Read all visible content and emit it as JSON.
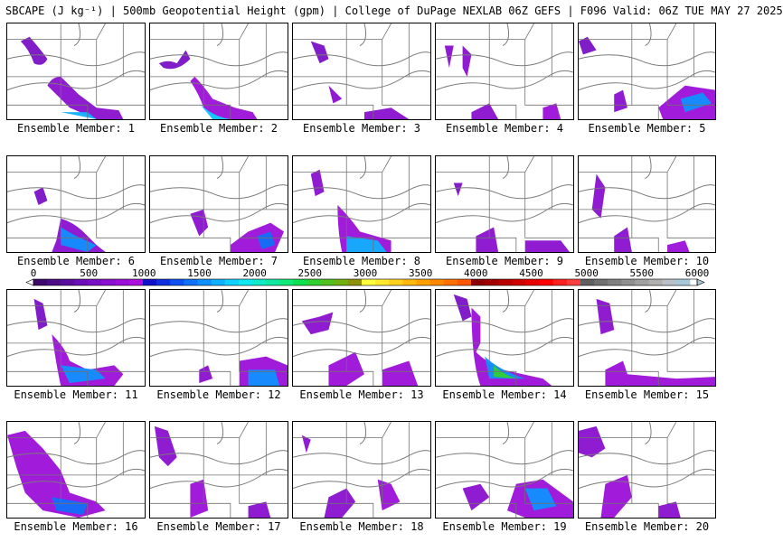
{
  "header": {
    "title": "SBCAPE (J kg⁻¹) | 500mb Geopotential Height (gpm) | College of DuPage NEXLAB 06Z GEFS | F096 Valid: 06Z TUE MAY 27 2025"
  },
  "caption_prefix": "Ensemble Member: ",
  "members": [
    {
      "label": "Ensemble Member: 1"
    },
    {
      "label": "Ensemble Member: 2"
    },
    {
      "label": "Ensemble Member: 3"
    },
    {
      "label": "Ensemble Member: 4"
    },
    {
      "label": "Ensemble Member: 5"
    },
    {
      "label": "Ensemble Member: 6"
    },
    {
      "label": "Ensemble Member: 7"
    },
    {
      "label": "Ensemble Member: 8"
    },
    {
      "label": "Ensemble Member: 9"
    },
    {
      "label": "Ensemble Member: 10"
    },
    {
      "label": "Ensemble Member: 11"
    },
    {
      "label": "Ensemble Member: 12"
    },
    {
      "label": "Ensemble Member: 13"
    },
    {
      "label": "Ensemble Member: 14"
    },
    {
      "label": "Ensemble Member: 15"
    },
    {
      "label": "Ensemble Member: 16"
    },
    {
      "label": "Ensemble Member: 17"
    },
    {
      "label": "Ensemble Member: 18"
    },
    {
      "label": "Ensemble Member: 19"
    },
    {
      "label": "Ensemble Member: 20"
    }
  ],
  "colorbar": {
    "tick_labels": [
      "0",
      "500",
      "1000",
      "1500",
      "2000",
      "2500",
      "3000",
      "3500",
      "4000",
      "4500",
      "5000",
      "5500",
      "6000"
    ],
    "min": 0,
    "max": 6000,
    "step": 125,
    "colors": [
      "#3d0a6b",
      "#4b0c85",
      "#5a0e9e",
      "#690fb5",
      "#7a10c6",
      "#8a10d0",
      "#9b10d8",
      "#ac10dd",
      "#1010c8",
      "#1030e0",
      "#1050f0",
      "#1070f8",
      "#1090ff",
      "#10b0ff",
      "#10d0ff",
      "#10e8f0",
      "#10e8c8",
      "#10e8a0",
      "#10e878",
      "#10e050",
      "#30d030",
      "#50c020",
      "#70b010",
      "#909010",
      "#ffff40",
      "#ffe830",
      "#ffd020",
      "#ffb810",
      "#ffa000",
      "#ff8800",
      "#ff7000",
      "#ff5800",
      "#8b0000",
      "#a00000",
      "#b80000",
      "#d00000",
      "#e80000",
      "#ff0000",
      "#ff2020",
      "#ff4040",
      "#606060",
      "#707070",
      "#808080",
      "#909090",
      "#a0a0a0",
      "#b0b0b0",
      "#b8c0c8",
      "#a8c8d8"
    ]
  },
  "map_colors": {
    "background": "#ffffff",
    "borders": "#707070",
    "heights": "#7a7a7a"
  }
}
